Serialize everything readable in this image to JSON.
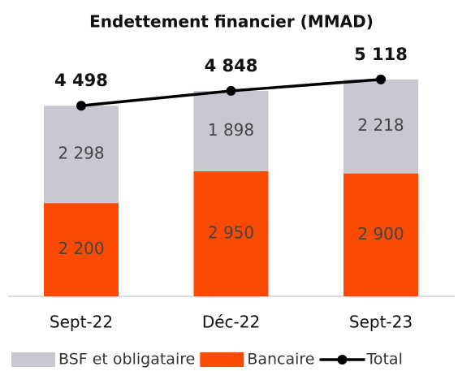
{
  "chart_data": {
    "type": "bar",
    "stacked": true,
    "title": "Endettement financier (MMAD)",
    "categories": [
      "Sept-22",
      "Déc-22",
      "Sept-23"
    ],
    "series": [
      {
        "name": "Bancaire",
        "color": "#fb4a02",
        "values": [
          2200,
          2950,
          2900
        ],
        "value_labels": [
          "2 200",
          "2 950",
          "2 900"
        ]
      },
      {
        "name": "BSF et obligataire",
        "color": "#c9c7d0",
        "values": [
          2298,
          1898,
          2218
        ],
        "value_labels": [
          "2 298",
          "1 898",
          "2 218"
        ]
      },
      {
        "name": "Total",
        "type": "line",
        "color": "#000000",
        "values": [
          4498,
          4848,
          5118
        ],
        "value_labels": [
          "4 498",
          "4 848",
          "5 118"
        ]
      }
    ]
  }
}
